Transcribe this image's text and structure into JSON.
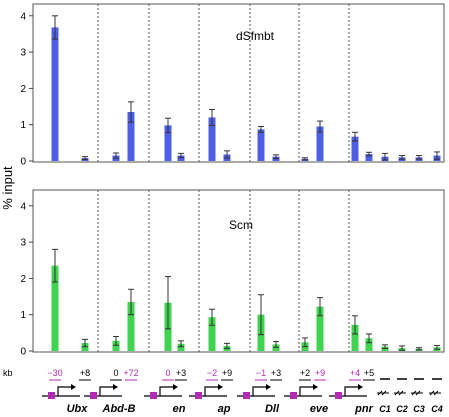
{
  "ylabel": "% input",
  "kb_label": "kb",
  "colors": {
    "dSfmbt": "#4f5ee6",
    "Scm": "#3fd34f",
    "magenta": "#b52ab5",
    "axis": "#444444"
  },
  "chart_data": [
    {
      "type": "bar",
      "title": "dSfmbt",
      "ylim": [
        0,
        4.2
      ],
      "yticks": [
        "0",
        "1",
        "2",
        "3",
        "4"
      ],
      "ytick_values": [
        0,
        1,
        2,
        3,
        4
      ],
      "grid": false,
      "bar_color": "#4f5ee6",
      "groups": [
        {
          "gene": "Ubx",
          "values": [
            3.68,
            0.08
          ],
          "errors": [
            0.32,
            0.04
          ]
        },
        {
          "gene": "Abd-B",
          "values": [
            0.15,
            1.35
          ],
          "errors": [
            0.07,
            0.28
          ]
        },
        {
          "gene": "en",
          "values": [
            0.98,
            0.15
          ],
          "errors": [
            0.2,
            0.06
          ]
        },
        {
          "gene": "ap",
          "values": [
            1.2,
            0.18
          ],
          "errors": [
            0.22,
            0.1
          ]
        },
        {
          "gene": "Dll",
          "values": [
            0.87,
            0.12
          ],
          "errors": [
            0.08,
            0.05
          ]
        },
        {
          "gene": "eve",
          "values": [
            0.06,
            0.95
          ],
          "errors": [
            0.03,
            0.15
          ]
        },
        {
          "gene": "pnr",
          "values": [
            0.67,
            0.19
          ],
          "errors": [
            0.12,
            0.05
          ]
        },
        {
          "gene": "controls",
          "values": [
            0.12,
            0.1,
            0.1,
            0.15
          ],
          "errors": [
            0.09,
            0.05,
            0.05,
            0.1
          ]
        }
      ]
    },
    {
      "type": "bar",
      "title": "Scm",
      "ylim": [
        0,
        4.2
      ],
      "yticks": [
        "0",
        "1",
        "2",
        "3",
        "4"
      ],
      "ytick_values": [
        0,
        1,
        2,
        3,
        4
      ],
      "grid": false,
      "bar_color": "#3fd34f",
      "groups": [
        {
          "gene": "Ubx",
          "values": [
            2.35,
            0.22
          ],
          "errors": [
            0.45,
            0.1
          ]
        },
        {
          "gene": "Abd-B",
          "values": [
            0.28,
            1.35
          ],
          "errors": [
            0.12,
            0.35
          ]
        },
        {
          "gene": "en",
          "values": [
            1.33,
            0.2
          ],
          "errors": [
            0.72,
            0.08
          ]
        },
        {
          "gene": "ap",
          "values": [
            0.93,
            0.14
          ],
          "errors": [
            0.22,
            0.07
          ]
        },
        {
          "gene": "Dll",
          "values": [
            1.0,
            0.18
          ],
          "errors": [
            0.55,
            0.08
          ]
        },
        {
          "gene": "eve",
          "values": [
            0.24,
            1.22
          ],
          "errors": [
            0.12,
            0.25
          ]
        },
        {
          "gene": "pnr",
          "values": [
            0.72,
            0.35
          ],
          "errors": [
            0.25,
            0.12
          ]
        },
        {
          "gene": "controls",
          "values": [
            0.12,
            0.08,
            0.06,
            0.1
          ],
          "errors": [
            0.05,
            0.06,
            0.03,
            0.05
          ]
        }
      ]
    }
  ],
  "genes": [
    {
      "name": "Ubx",
      "kb": [
        "−30",
        "+8"
      ],
      "kb_colored": [
        true,
        false
      ]
    },
    {
      "name": "Abd-B",
      "kb": [
        "0",
        "+72"
      ],
      "kb_colored": [
        false,
        true
      ]
    },
    {
      "name": "en",
      "kb": [
        "0",
        "+3"
      ],
      "kb_colored": [
        true,
        false
      ]
    },
    {
      "name": "ap",
      "kb": [
        "−2",
        "+9"
      ],
      "kb_colored": [
        true,
        false
      ]
    },
    {
      "name": "Dll",
      "kb": [
        "−1",
        "+3"
      ],
      "kb_colored": [
        true,
        false
      ]
    },
    {
      "name": "eve",
      "kb": [
        "+2",
        "+9"
      ],
      "kb_colored": [
        false,
        true
      ]
    },
    {
      "name": "pnr",
      "kb": [
        "+4",
        "+5"
      ],
      "kb_colored": [
        true,
        false
      ]
    }
  ],
  "controls": [
    "C1",
    "C2",
    "C3",
    "C4"
  ]
}
